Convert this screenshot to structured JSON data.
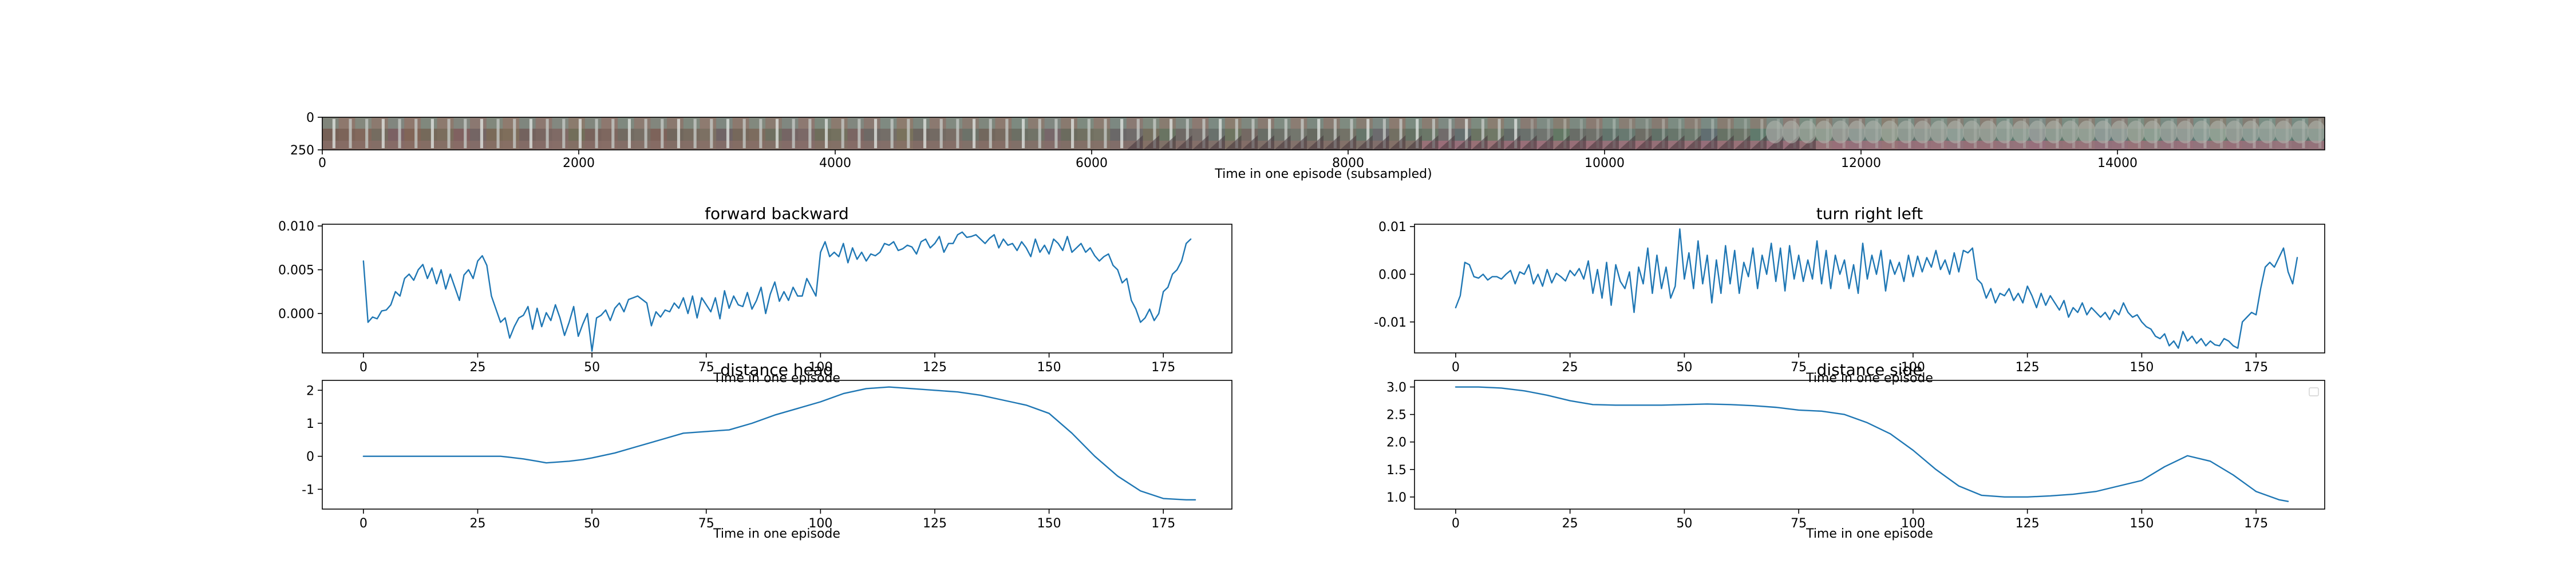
{
  "colors": {
    "series": "#1f77b4",
    "background": "#ffffff",
    "axes": "#000000"
  },
  "chart_data": [
    {
      "id": "filmstrip",
      "type": "other",
      "title": "",
      "xlabel": "Time in one episode (subsampled)",
      "ylabel": "",
      "xlim": [
        0,
        15616
      ],
      "ylim": [
        250,
        0
      ],
      "xticks": [
        "0",
        "2000",
        "4000",
        "6000",
        "8000",
        "10000",
        "12000",
        "14000"
      ],
      "yticks": [
        "0",
        "250"
      ],
      "frame_count": 122
    },
    {
      "id": "forward-backward",
      "type": "line",
      "title": "forward backward",
      "xlabel": "Time in one episode",
      "ylabel": "",
      "xlim": [
        -9,
        190
      ],
      "ylim": [
        -0.0045,
        0.0102
      ],
      "xticks": [
        "0",
        "25",
        "50",
        "75",
        "100",
        "125",
        "150",
        "175"
      ],
      "yticks": [
        "0.000",
        "0.005",
        "0.010"
      ],
      "series": [
        {
          "values": [
            0.006,
            -0.001,
            -0.0004,
            -0.0006,
            0.0003,
            0.0004,
            0.001,
            0.0025,
            0.002,
            0.004,
            0.0045,
            0.0038,
            0.005,
            0.0056,
            0.004,
            0.0052,
            0.0034,
            0.005,
            0.0028,
            0.0045,
            0.003,
            0.0015,
            0.0044,
            0.005,
            0.004,
            0.006,
            0.0066,
            0.0055,
            0.002,
            0.0005,
            -0.001,
            -0.0005,
            -0.0028,
            -0.0015,
            -0.0005,
            -0.0002,
            0.0008,
            -0.0018,
            0.0006,
            -0.0015,
            0.0001,
            -0.0008,
            0.001,
            -0.0005,
            -0.0025,
            -0.001,
            0.0008,
            -0.0026,
            -0.0012,
            0.0,
            -0.0043,
            -0.0005,
            -0.0002,
            0.0004,
            -0.0008,
            0.0006,
            0.0012,
            0.0002,
            0.0016,
            0.0018,
            0.002,
            0.0016,
            0.0012,
            -0.0014,
            0.0002,
            -0.0004,
            0.0004,
            0.0002,
            0.0012,
            0.0006,
            0.0018,
            0.0,
            0.002,
            -0.0005,
            0.0018,
            0.001,
            0.0002,
            0.0018,
            -0.0006,
            0.0026,
            0.0006,
            0.002,
            0.001,
            0.0008,
            0.0024,
            0.0005,
            0.0015,
            0.003,
            0.0,
            0.0022,
            0.0036,
            0.0014,
            0.0025,
            0.0015,
            0.003,
            0.002,
            0.002,
            0.004,
            0.003,
            0.002,
            0.007,
            0.0082,
            0.0065,
            0.007,
            0.0065,
            0.008,
            0.0058,
            0.0075,
            0.0062,
            0.007,
            0.006,
            0.0068,
            0.0066,
            0.007,
            0.008,
            0.0078,
            0.0082,
            0.0072,
            0.0074,
            0.0078,
            0.0076,
            0.0068,
            0.0082,
            0.0085,
            0.0075,
            0.008,
            0.0088,
            0.007,
            0.008,
            0.008,
            0.009,
            0.0093,
            0.0087,
            0.0088,
            0.009,
            0.0085,
            0.008,
            0.0086,
            0.009,
            0.0075,
            0.0085,
            0.0078,
            0.008,
            0.0072,
            0.0082,
            0.0075,
            0.0065,
            0.0085,
            0.007,
            0.0078,
            0.0068,
            0.0085,
            0.008,
            0.0072,
            0.0088,
            0.007,
            0.0075,
            0.008,
            0.007,
            0.0075,
            0.0066,
            0.006,
            0.0065,
            0.0068,
            0.0055,
            0.005,
            0.0035,
            0.004,
            0.0015,
            0.0005,
            -0.001,
            -0.0005,
            0.0005,
            -0.0008,
            0.0,
            0.0025,
            0.003,
            0.0045,
            0.005,
            0.006,
            0.008,
            0.0085
          ]
        }
      ]
    },
    {
      "id": "turn-right-left",
      "type": "line",
      "title": "turn right left",
      "xlabel": "Time in one episode",
      "ylabel": "",
      "xlim": [
        -9,
        190
      ],
      "ylim": [
        -0.0165,
        0.0105
      ],
      "xticks": [
        "0",
        "25",
        "50",
        "75",
        "100",
        "125",
        "150",
        "175"
      ],
      "yticks": [
        "-0.01",
        "0.00",
        "0.01"
      ],
      "series": [
        {
          "values": [
            -0.007,
            -0.0045,
            0.0025,
            0.002,
            -0.0005,
            -0.0008,
            0.0,
            -0.0012,
            -0.0005,
            -0.0005,
            -0.001,
            0.0,
            0.0008,
            -0.002,
            0.0005,
            0.0,
            0.002,
            -0.002,
            0.0,
            -0.0025,
            0.001,
            -0.0018,
            0.0002,
            -0.0005,
            -0.0014,
            0.0008,
            -0.0003,
            0.0012,
            -0.001,
            0.0028,
            -0.004,
            0.001,
            -0.005,
            0.0025,
            -0.0065,
            0.002,
            -0.0015,
            -0.003,
            0.0005,
            -0.008,
            0.0015,
            -0.002,
            0.0055,
            -0.004,
            0.004,
            -0.003,
            0.0015,
            -0.005,
            -0.0025,
            0.0095,
            -0.001,
            0.0045,
            -0.003,
            0.007,
            -0.002,
            0.004,
            -0.006,
            0.003,
            -0.004,
            0.006,
            -0.002,
            0.005,
            -0.004,
            0.0025,
            -0.0005,
            0.0055,
            -0.003,
            0.004,
            0.0,
            0.0065,
            -0.0015,
            0.0055,
            -0.0035,
            0.006,
            -0.001,
            0.004,
            -0.0015,
            0.003,
            -0.001,
            0.007,
            -0.002,
            0.005,
            -0.003,
            0.004,
            0.0,
            0.003,
            -0.003,
            0.002,
            -0.004,
            0.0065,
            -0.001,
            0.004,
            0.0,
            0.005,
            -0.0035,
            0.003,
            0.0,
            0.0025,
            -0.0015,
            0.004,
            -0.0005,
            0.0038,
            0.0005,
            0.0035,
            0.0015,
            0.005,
            0.001,
            0.003,
            0.0,
            0.0045,
            0.0005,
            0.005,
            0.0045,
            0.0055,
            -0.001,
            -0.002,
            -0.005,
            -0.003,
            -0.006,
            -0.004,
            -0.0045,
            -0.003,
            -0.0055,
            -0.004,
            -0.006,
            -0.0025,
            -0.0045,
            -0.007,
            -0.004,
            -0.0065,
            -0.0045,
            -0.006,
            -0.0075,
            -0.0055,
            -0.009,
            -0.007,
            -0.008,
            -0.006,
            -0.0085,
            -0.007,
            -0.008,
            -0.009,
            -0.008,
            -0.0095,
            -0.0075,
            -0.0085,
            -0.006,
            -0.008,
            -0.009,
            -0.0085,
            -0.01,
            -0.011,
            -0.0115,
            -0.013,
            -0.0135,
            -0.0125,
            -0.015,
            -0.014,
            -0.0155,
            -0.012,
            -0.014,
            -0.013,
            -0.0145,
            -0.0135,
            -0.015,
            -0.014,
            -0.0148,
            -0.015,
            -0.0135,
            -0.014,
            -0.015,
            -0.0155,
            -0.01,
            -0.009,
            -0.008,
            -0.0085,
            -0.003,
            0.0015,
            0.0025,
            0.0015,
            0.0035,
            0.0055,
            0.0005,
            -0.002,
            0.0035
          ]
        }
      ]
    },
    {
      "id": "distance-head",
      "type": "line",
      "title": "distance head",
      "xlabel": "Time in one episode",
      "ylabel": "",
      "xlim": [
        -9,
        190
      ],
      "ylim": [
        -1.6,
        2.3
      ],
      "xticks": [
        "0",
        "25",
        "50",
        "75",
        "100",
        "125",
        "150",
        "175"
      ],
      "yticks": [
        "-1",
        "0",
        "1",
        "2"
      ],
      "series": [
        {
          "x": [
            0,
            5,
            10,
            15,
            20,
            25,
            30,
            32,
            35,
            38,
            40,
            42,
            45,
            48,
            50,
            55,
            60,
            65,
            70,
            75,
            80,
            85,
            90,
            95,
            100,
            105,
            110,
            115,
            120,
            125,
            130,
            135,
            140,
            145,
            150,
            155,
            160,
            165,
            170,
            175,
            180,
            182
          ],
          "y": [
            0.0,
            0.0,
            0.0,
            0.0,
            0.0,
            0.0,
            0.0,
            -0.03,
            -0.08,
            -0.15,
            -0.2,
            -0.18,
            -0.15,
            -0.1,
            -0.05,
            0.1,
            0.3,
            0.5,
            0.7,
            0.75,
            0.8,
            1.0,
            1.25,
            1.45,
            1.65,
            1.9,
            2.05,
            2.1,
            2.05,
            2.0,
            1.95,
            1.85,
            1.7,
            1.55,
            1.3,
            0.7,
            0.0,
            -0.6,
            -1.05,
            -1.28,
            -1.32,
            -1.32
          ]
        }
      ]
    },
    {
      "id": "distance-side",
      "type": "line",
      "title": "distance side",
      "xlabel": "Time in one episode",
      "ylabel": "",
      "xlim": [
        -9,
        190
      ],
      "ylim": [
        0.78,
        3.12
      ],
      "xticks": [
        "0",
        "25",
        "50",
        "75",
        "100",
        "125",
        "150",
        "175"
      ],
      "yticks": [
        "1.0",
        "1.5",
        "2.0",
        "2.5",
        "3.0"
      ],
      "legend": "top-right",
      "series": [
        {
          "x": [
            0,
            5,
            10,
            15,
            20,
            25,
            30,
            35,
            40,
            45,
            50,
            55,
            60,
            65,
            70,
            75,
            80,
            85,
            90,
            95,
            100,
            105,
            110,
            115,
            120,
            125,
            130,
            135,
            140,
            145,
            150,
            155,
            160,
            165,
            170,
            175,
            180,
            182
          ],
          "y": [
            3.0,
            3.0,
            2.98,
            2.93,
            2.85,
            2.75,
            2.68,
            2.67,
            2.67,
            2.67,
            2.68,
            2.69,
            2.68,
            2.66,
            2.63,
            2.58,
            2.56,
            2.5,
            2.35,
            2.15,
            1.85,
            1.5,
            1.2,
            1.03,
            1.0,
            1.0,
            1.02,
            1.05,
            1.1,
            1.2,
            1.3,
            1.55,
            1.75,
            1.65,
            1.4,
            1.1,
            0.95,
            0.92
          ]
        }
      ]
    }
  ]
}
